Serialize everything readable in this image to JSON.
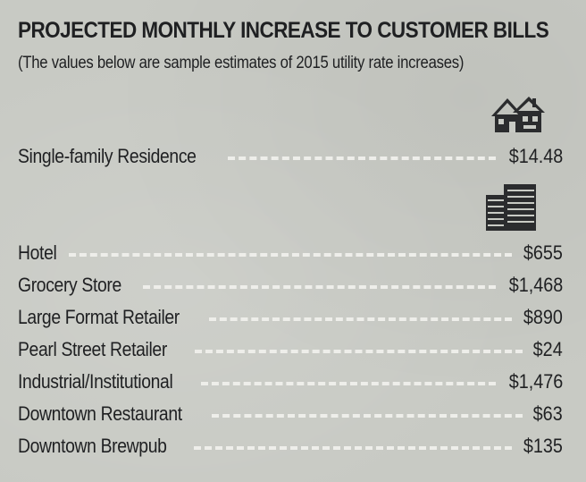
{
  "header": {
    "title": "PROJECTED MONTHLY INCREASE TO CUSTOMER BILLS",
    "subtitle": "(The values below are sample estimates of 2015 utility rate increases)"
  },
  "icons": {
    "residential": "house-icon",
    "commercial": "office-building-icon"
  },
  "residential_rows": [
    {
      "label": "Single-family Residence",
      "value": "$14.48"
    }
  ],
  "commercial_rows": [
    {
      "label": "Hotel",
      "value": "$655"
    },
    {
      "label": "Grocery Store",
      "value": "$1,468"
    },
    {
      "label": "Large Format Retailer",
      "value": "$890"
    },
    {
      "label": "Pearl Street Retailer",
      "value": "$24"
    },
    {
      "label": "Industrial/Institutional",
      "value": "$1,476"
    },
    {
      "label": "Downtown Restaurant",
      "value": "$63"
    },
    {
      "label": "Downtown Brewpub",
      "value": "$135"
    }
  ]
}
